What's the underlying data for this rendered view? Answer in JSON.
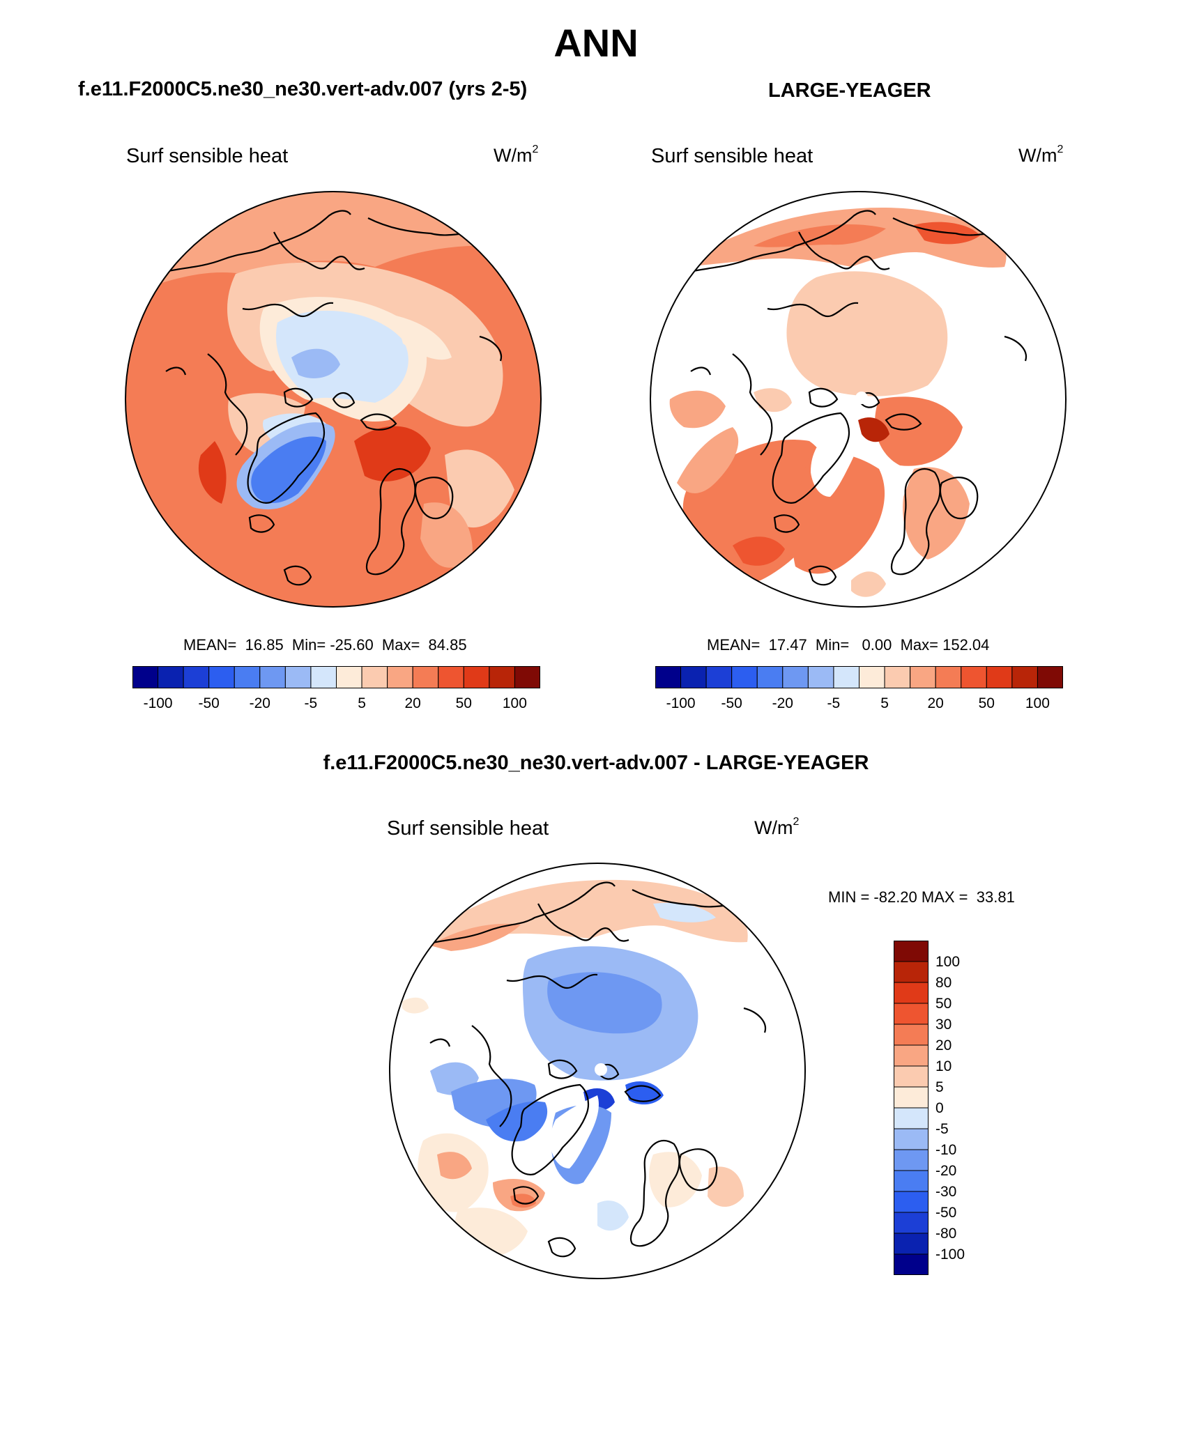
{
  "page": {
    "title": "ANN"
  },
  "panels": {
    "test": {
      "case_title": "f.e11.F2000C5.ne30_ne30.vert-adv.007 (yrs 2-5)",
      "variable": "Surf sensible heat",
      "units_base": "W/m",
      "units_exp": "2",
      "stats": "MEAN=  16.85  Min= -25.60  Max=  84.85"
    },
    "obs": {
      "case_title": "LARGE-YEAGER",
      "variable": "Surf sensible heat",
      "units_base": "W/m",
      "units_exp": "2",
      "stats": "MEAN=  17.47  Min=   0.00  Max= 152.04"
    },
    "diff": {
      "case_title": "f.e11.F2000C5.ne30_ne30.vert-adv.007 - LARGE-YEAGER",
      "variable": "Surf sensible heat",
      "units_base": "W/m",
      "units_exp": "2",
      "stats": "MIN = -82.20 MAX =  33.81"
    }
  },
  "colorbars": {
    "horizontal": {
      "colors": [
        "#00008b",
        "#0a22b0",
        "#1c3fd6",
        "#2c5ef0",
        "#4a7df2",
        "#6e98f2",
        "#9bbaf5",
        "#d4e6fb",
        "#fdebd9",
        "#fbcbb0",
        "#f9a683",
        "#f47c55",
        "#ee5530",
        "#e03a18",
        "#b82508",
        "#7f0a05"
      ],
      "ticks": [
        "-100",
        "-50",
        "-20",
        "-5",
        "5",
        "20",
        "50",
        "100"
      ]
    },
    "vertical": {
      "colors": [
        "#00008b",
        "#0a22b0",
        "#1c3fd6",
        "#2c5ef0",
        "#4a7df2",
        "#6e98f2",
        "#9bbaf5",
        "#d4e6fb",
        "#fdebd9",
        "#fbcbb0",
        "#f9a683",
        "#f47c55",
        "#ee5530",
        "#e03a18",
        "#b82508",
        "#7f0a05"
      ],
      "ticks": [
        "100",
        "80",
        "50",
        "30",
        "20",
        "10",
        "5",
        "0",
        "-5",
        "-10",
        "-20",
        "-30",
        "-50",
        "-80",
        "-100"
      ]
    }
  },
  "legend_colors": {
    "pos_light": "#fdebd9",
    "pos_mid": "#f9a683",
    "pos_strong": "#ee5530",
    "pos_dark": "#b82508",
    "neg_light": "#d4e6fb",
    "neg_mid": "#9bbaf5",
    "neg_strong": "#4a7df2",
    "neg_dark": "#1c3fd6"
  }
}
